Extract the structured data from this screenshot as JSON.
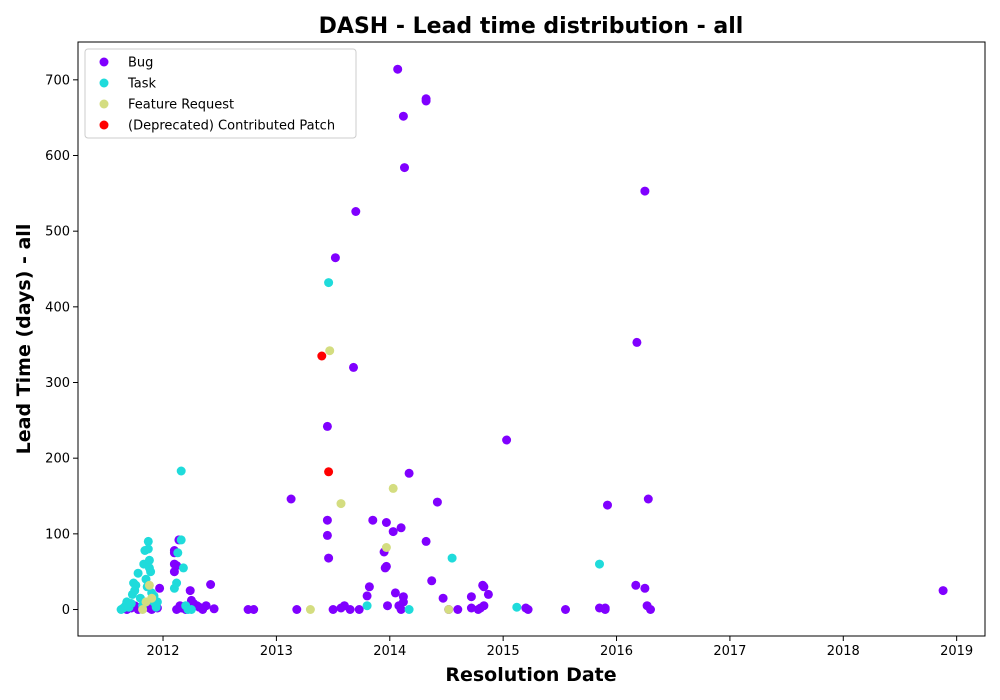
{
  "chart_data": {
    "type": "scatter",
    "title": "DASH - Lead time distribution - all",
    "xlabel": "Resolution Date",
    "ylabel": "Lead Time (days) - all",
    "xlim": [
      2011.25,
      2019.25
    ],
    "ylim": [
      -35,
      750
    ],
    "x_ticks": [
      2012,
      2013,
      2014,
      2015,
      2016,
      2017,
      2018,
      2019
    ],
    "x_tick_labels": [
      "2012",
      "2013",
      "2014",
      "2015",
      "2016",
      "2017",
      "2018",
      "2019"
    ],
    "y_ticks": [
      0,
      100,
      200,
      300,
      400,
      500,
      600,
      700
    ],
    "y_tick_labels": [
      "0",
      "100",
      "200",
      "300",
      "400",
      "500",
      "600",
      "700"
    ],
    "grid": false,
    "legend_position": "top-left",
    "series": [
      {
        "name": "Bug",
        "color": "#8000ff",
        "points": [
          [
            2011.68,
            0
          ],
          [
            2011.72,
            2
          ],
          [
            2011.75,
            5
          ],
          [
            2011.78,
            0
          ],
          [
            2011.8,
            3
          ],
          [
            2011.85,
            8
          ],
          [
            2011.88,
            2
          ],
          [
            2011.9,
            0
          ],
          [
            2011.93,
            5
          ],
          [
            2011.95,
            2
          ],
          [
            2011.97,
            28
          ],
          [
            2012.1,
            78
          ],
          [
            2012.1,
            75
          ],
          [
            2012.1,
            60
          ],
          [
            2012.1,
            50
          ],
          [
            2012.12,
            58
          ],
          [
            2012.14,
            92
          ],
          [
            2012.15,
            5
          ],
          [
            2012.12,
            0
          ],
          [
            2012.16,
            2
          ],
          [
            2012.2,
            0
          ],
          [
            2012.24,
            25
          ],
          [
            2012.25,
            12
          ],
          [
            2012.27,
            8
          ],
          [
            2012.3,
            5
          ],
          [
            2012.32,
            3
          ],
          [
            2012.35,
            0
          ],
          [
            2012.38,
            5
          ],
          [
            2012.42,
            33
          ],
          [
            2012.45,
            1
          ],
          [
            2012.75,
            0
          ],
          [
            2012.8,
            0
          ],
          [
            2013.13,
            146
          ],
          [
            2013.18,
            0
          ],
          [
            2013.45,
            242
          ],
          [
            2013.45,
            118
          ],
          [
            2013.45,
            98
          ],
          [
            2013.46,
            68
          ],
          [
            2013.5,
            0
          ],
          [
            2013.52,
            465
          ],
          [
            2013.57,
            2
          ],
          [
            2013.6,
            5
          ],
          [
            2013.65,
            0
          ],
          [
            2013.68,
            320
          ],
          [
            2013.7,
            526
          ],
          [
            2013.73,
            0
          ],
          [
            2013.8,
            18
          ],
          [
            2013.82,
            30
          ],
          [
            2013.85,
            118
          ],
          [
            2013.95,
            76
          ],
          [
            2013.96,
            55
          ],
          [
            2013.97,
            57
          ],
          [
            2013.97,
            115
          ],
          [
            2013.98,
            5
          ],
          [
            2014.03,
            103
          ],
          [
            2014.05,
            22
          ],
          [
            2014.07,
            714
          ],
          [
            2014.08,
            5
          ],
          [
            2014.1,
            0
          ],
          [
            2014.1,
            108
          ],
          [
            2014.12,
            17
          ],
          [
            2014.12,
            10
          ],
          [
            2014.12,
            652
          ],
          [
            2014.13,
            584
          ],
          [
            2014.17,
            180
          ],
          [
            2014.32,
            675
          ],
          [
            2014.32,
            672
          ],
          [
            2014.32,
            90
          ],
          [
            2014.37,
            38
          ],
          [
            2014.42,
            142
          ],
          [
            2014.47,
            15
          ],
          [
            2014.52,
            0
          ],
          [
            2014.6,
            0
          ],
          [
            2014.72,
            17
          ],
          [
            2014.72,
            2
          ],
          [
            2014.78,
            0
          ],
          [
            2014.8,
            2
          ],
          [
            2014.82,
            32
          ],
          [
            2014.83,
            30
          ],
          [
            2014.83,
            5
          ],
          [
            2014.87,
            20
          ],
          [
            2015.03,
            224
          ],
          [
            2015.2,
            2
          ],
          [
            2015.22,
            0
          ],
          [
            2015.55,
            0
          ],
          [
            2015.85,
            2
          ],
          [
            2015.9,
            0
          ],
          [
            2015.9,
            2
          ],
          [
            2015.92,
            138
          ],
          [
            2016.17,
            32
          ],
          [
            2016.18,
            353
          ],
          [
            2016.25,
            553
          ],
          [
            2016.25,
            28
          ],
          [
            2016.27,
            5
          ],
          [
            2016.28,
            146
          ],
          [
            2016.3,
            0
          ],
          [
            2018.88,
            25
          ]
        ]
      },
      {
        "name": "Task",
        "color": "#1fdbdb",
        "points": [
          [
            2011.63,
            0
          ],
          [
            2011.65,
            2
          ],
          [
            2011.67,
            5
          ],
          [
            2011.68,
            10
          ],
          [
            2011.7,
            3
          ],
          [
            2011.72,
            8
          ],
          [
            2011.73,
            20
          ],
          [
            2011.74,
            35
          ],
          [
            2011.75,
            25
          ],
          [
            2011.76,
            32
          ],
          [
            2011.78,
            48
          ],
          [
            2011.8,
            15
          ],
          [
            2011.82,
            5
          ],
          [
            2011.83,
            60
          ],
          [
            2011.84,
            78
          ],
          [
            2011.85,
            40
          ],
          [
            2011.86,
            30
          ],
          [
            2011.87,
            90
          ],
          [
            2011.87,
            80
          ],
          [
            2011.88,
            65
          ],
          [
            2011.88,
            55
          ],
          [
            2011.89,
            50
          ],
          [
            2011.9,
            22
          ],
          [
            2011.9,
            12
          ],
          [
            2011.92,
            18
          ],
          [
            2011.93,
            8
          ],
          [
            2011.94,
            3
          ],
          [
            2011.95,
            10
          ],
          [
            2012.1,
            28
          ],
          [
            2012.12,
            35
          ],
          [
            2012.13,
            75
          ],
          [
            2012.16,
            183
          ],
          [
            2012.16,
            92
          ],
          [
            2012.18,
            55
          ],
          [
            2012.2,
            5
          ],
          [
            2012.22,
            0
          ],
          [
            2012.25,
            0
          ],
          [
            2013.46,
            432
          ],
          [
            2013.8,
            5
          ],
          [
            2014.17,
            0
          ],
          [
            2014.55,
            68
          ],
          [
            2015.12,
            3
          ],
          [
            2015.85,
            60
          ]
        ]
      },
      {
        "name": "Feature Request",
        "color": "#d4dd80",
        "points": [
          [
            2011.85,
            10
          ],
          [
            2011.82,
            0
          ],
          [
            2011.88,
            32
          ],
          [
            2011.9,
            15
          ],
          [
            2013.3,
            0
          ],
          [
            2013.47,
            342
          ],
          [
            2013.57,
            140
          ],
          [
            2013.97,
            82
          ],
          [
            2014.03,
            160
          ],
          [
            2014.52,
            0
          ]
        ]
      },
      {
        "name": "(Deprecated) Contributed Patch",
        "color": "#ff0000",
        "points": [
          [
            2013.4,
            335
          ],
          [
            2013.46,
            182
          ]
        ]
      }
    ]
  }
}
